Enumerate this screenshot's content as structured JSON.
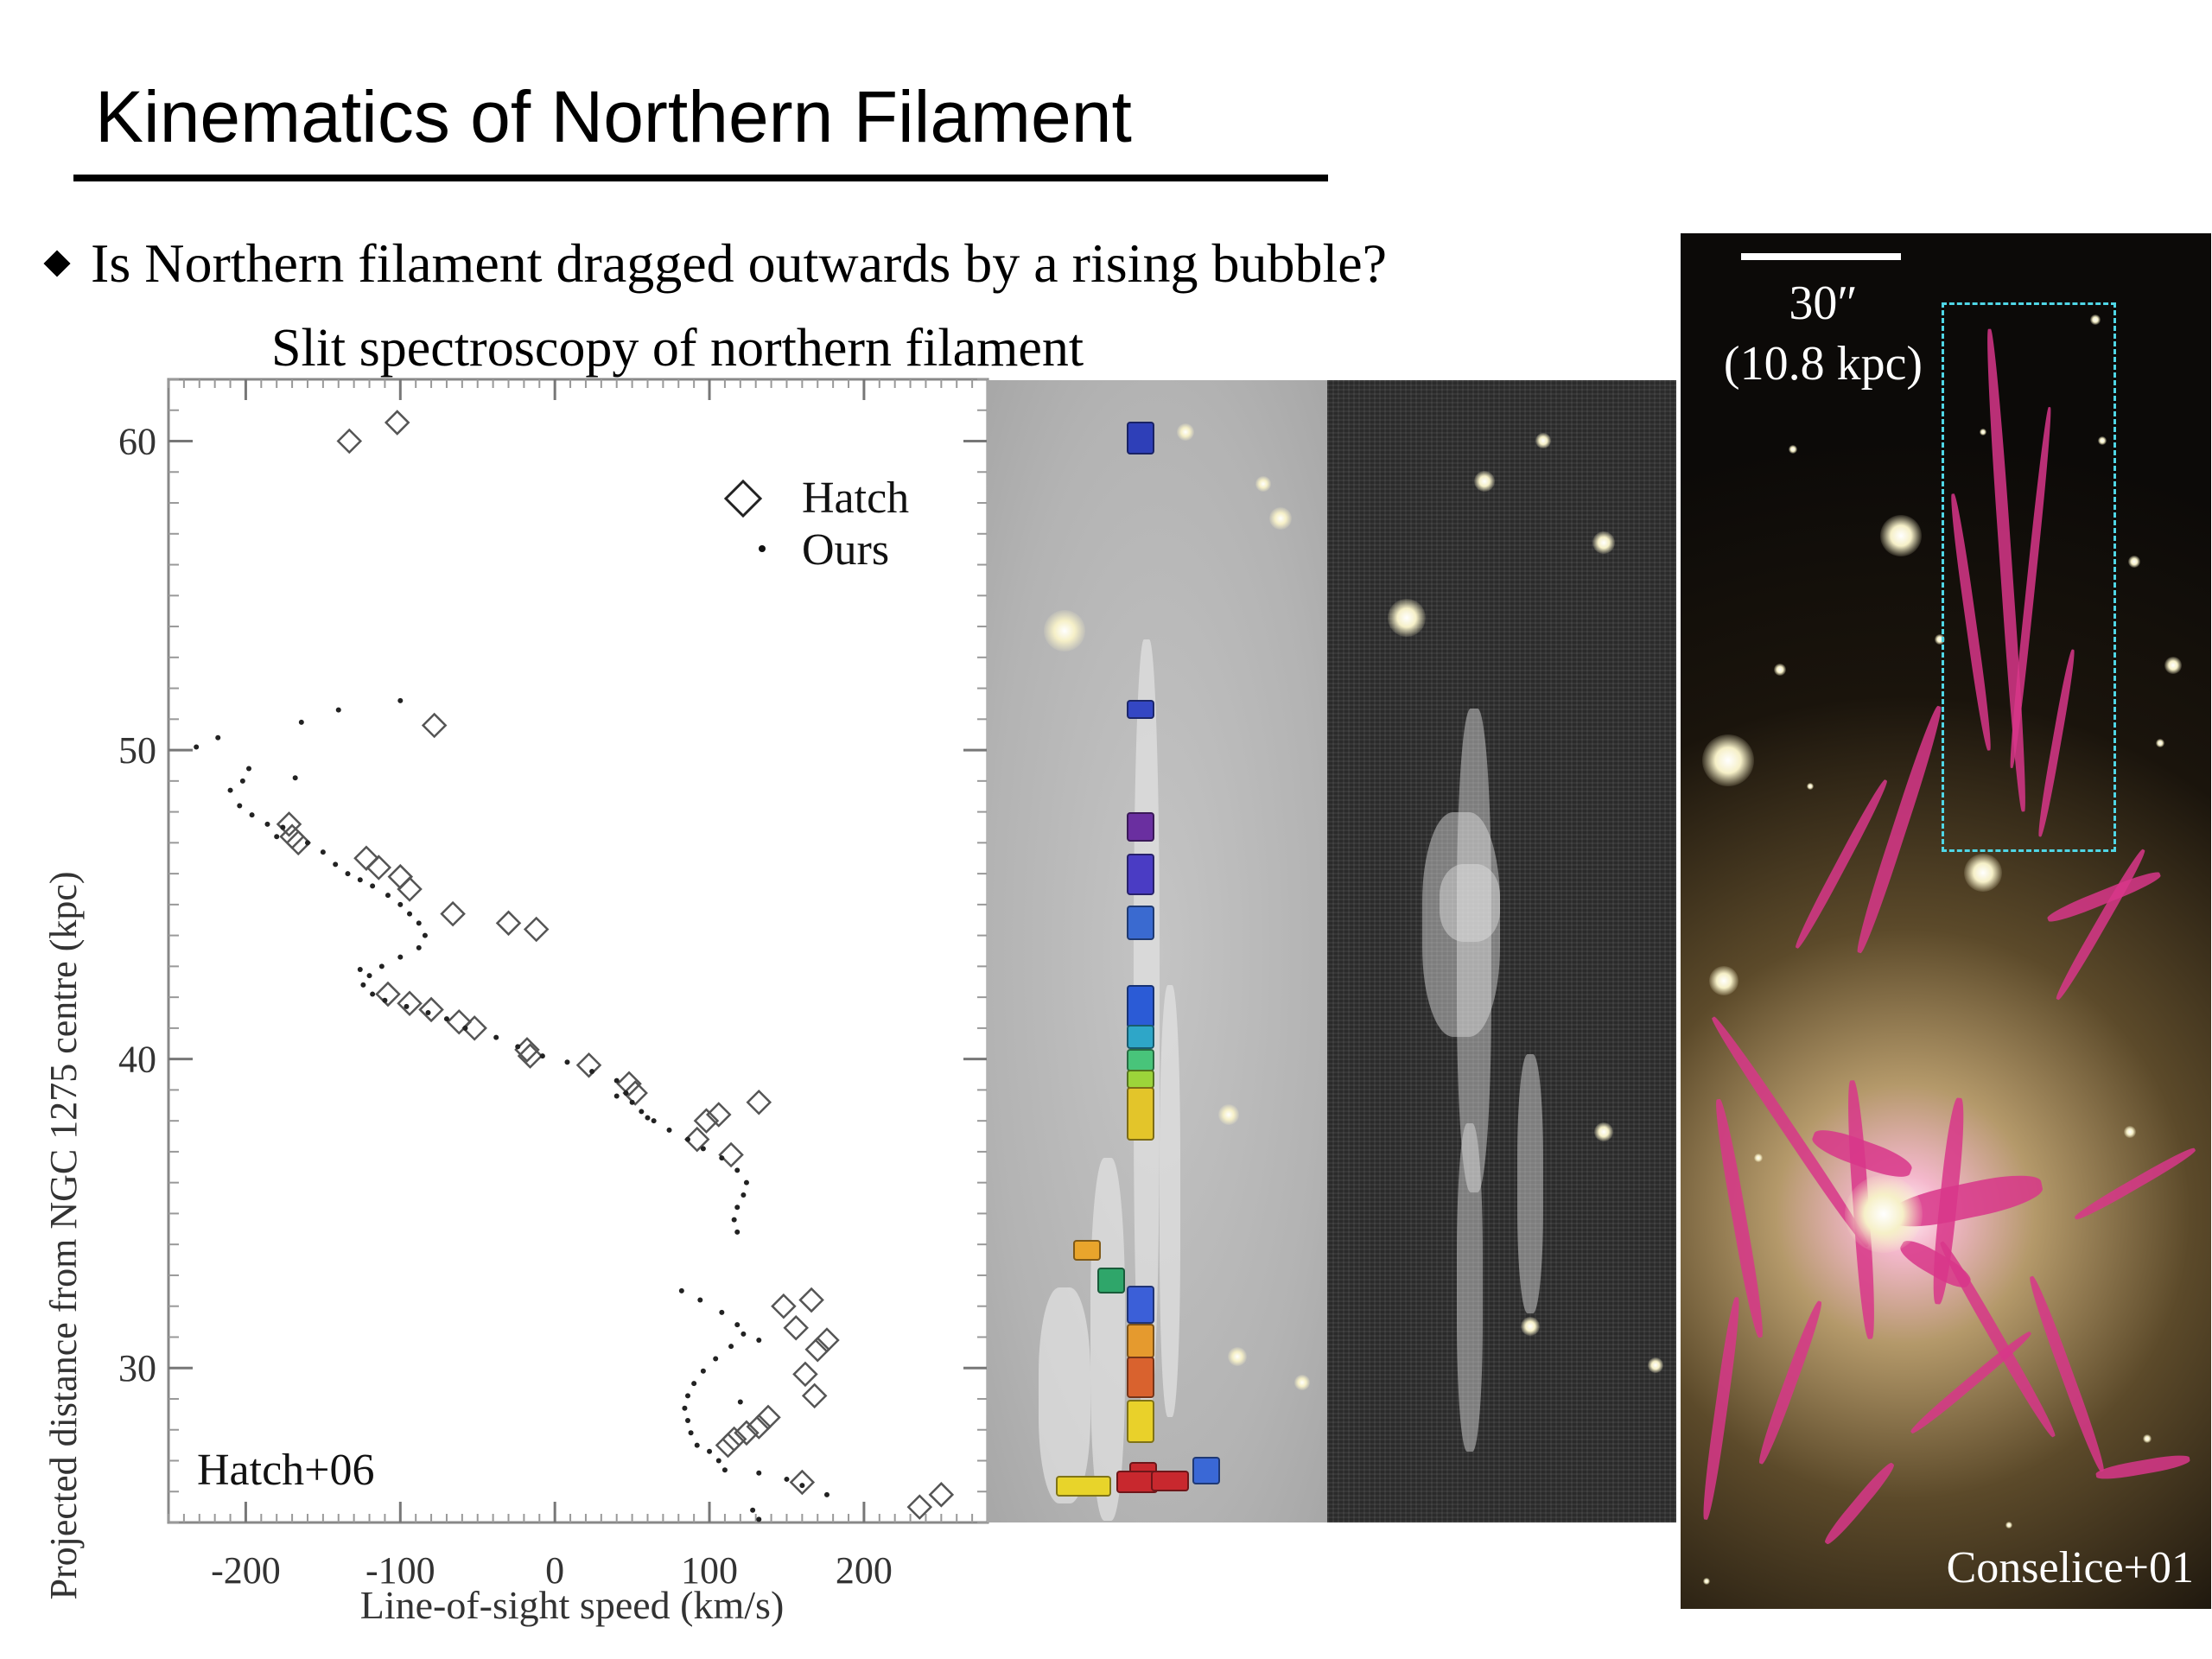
{
  "slide": {
    "title": "Kinematics of Northern Filament",
    "bullet": "Is Northern filament dragged outwards by a rising bubble?",
    "subheading": "Slit spectroscopy of northern filament"
  },
  "chart_data": {
    "type": "scatter",
    "xlabel": "Line-of-sight speed (km/s)",
    "ylabel": "Projected distance from NGC 1275 centre (kpc)",
    "xlim": [
      -250,
      280
    ],
    "ylim": [
      25,
      62
    ],
    "xticks": [
      -200,
      -100,
      0,
      100,
      200
    ],
    "yticks": [
      30,
      40,
      50,
      60
    ],
    "legend_position": "top-right",
    "annotation": "Hatch+06",
    "series": [
      {
        "name": "Hatch",
        "marker": "diamond",
        "points": [
          [
            -133,
            60.0
          ],
          [
            -102,
            60.6
          ],
          [
            -78,
            50.8
          ],
          [
            -172,
            47.6
          ],
          [
            -170,
            47.2
          ],
          [
            -166,
            47.0
          ],
          [
            -122,
            46.5
          ],
          [
            -114,
            46.2
          ],
          [
            -100,
            45.9
          ],
          [
            -94,
            45.5
          ],
          [
            -66,
            44.7
          ],
          [
            -30,
            44.4
          ],
          [
            -12,
            44.2
          ],
          [
            -108,
            42.1
          ],
          [
            -94,
            41.8
          ],
          [
            -80,
            41.6
          ],
          [
            -62,
            41.2
          ],
          [
            -52,
            41.0
          ],
          [
            -18,
            40.3
          ],
          [
            -16,
            40.1
          ],
          [
            22,
            39.8
          ],
          [
            48,
            39.2
          ],
          [
            52,
            38.9
          ],
          [
            132,
            38.6
          ],
          [
            98,
            38.0
          ],
          [
            106,
            38.2
          ],
          [
            92,
            37.4
          ],
          [
            114,
            36.9
          ],
          [
            148,
            32.0
          ],
          [
            166,
            32.2
          ],
          [
            156,
            31.3
          ],
          [
            176,
            30.9
          ],
          [
            170,
            30.6
          ],
          [
            162,
            29.8
          ],
          [
            168,
            29.1
          ],
          [
            138,
            28.4
          ],
          [
            132,
            28.1
          ],
          [
            124,
            27.9
          ],
          [
            116,
            27.7
          ],
          [
            112,
            27.5
          ],
          [
            160,
            26.3
          ],
          [
            236,
            25.5
          ],
          [
            250,
            25.9
          ]
        ]
      },
      {
        "name": "Ours",
        "marker": "dot",
        "points": [
          [
            -232,
            50.1
          ],
          [
            -218,
            50.4
          ],
          [
            -164,
            50.9
          ],
          [
            -168,
            49.1
          ],
          [
            -198,
            49.4
          ],
          [
            -202,
            49.0
          ],
          [
            -210,
            48.7
          ],
          [
            -204,
            48.2
          ],
          [
            -196,
            47.9
          ],
          [
            -186,
            47.6
          ],
          [
            -180,
            47.2
          ],
          [
            -160,
            47.0
          ],
          [
            -150,
            46.7
          ],
          [
            -142,
            46.3
          ],
          [
            -134,
            46.0
          ],
          [
            -126,
            45.8
          ],
          [
            -118,
            45.6
          ],
          [
            -108,
            45.3
          ],
          [
            -100,
            45.0
          ],
          [
            -94,
            44.7
          ],
          [
            -88,
            44.4
          ],
          [
            -84,
            44.0
          ],
          [
            -88,
            43.6
          ],
          [
            -100,
            43.3
          ],
          [
            -112,
            43.0
          ],
          [
            -120,
            42.7
          ],
          [
            -124,
            42.4
          ],
          [
            -118,
            42.1
          ],
          [
            -110,
            41.9
          ],
          [
            -96,
            41.7
          ],
          [
            -82,
            41.5
          ],
          [
            -70,
            41.3
          ],
          [
            -58,
            41.0
          ],
          [
            -38,
            40.7
          ],
          [
            -24,
            40.4
          ],
          [
            -8,
            40.1
          ],
          [
            8,
            39.9
          ],
          [
            24,
            39.6
          ],
          [
            40,
            39.3
          ],
          [
            46,
            38.9
          ],
          [
            50,
            38.6
          ],
          [
            56,
            38.3
          ],
          [
            64,
            38.0
          ],
          [
            74,
            37.7
          ],
          [
            86,
            37.4
          ],
          [
            96,
            37.1
          ],
          [
            108,
            36.8
          ],
          [
            118,
            36.4
          ],
          [
            124,
            36.0
          ],
          [
            122,
            35.6
          ],
          [
            118,
            35.2
          ],
          [
            116,
            34.8
          ],
          [
            118,
            34.4
          ],
          [
            82,
            32.5
          ],
          [
            94,
            32.2
          ],
          [
            108,
            31.8
          ],
          [
            118,
            31.4
          ],
          [
            122,
            31.1
          ],
          [
            114,
            30.7
          ],
          [
            104,
            30.3
          ],
          [
            96,
            29.9
          ],
          [
            90,
            29.5
          ],
          [
            86,
            29.1
          ],
          [
            84,
            28.7
          ],
          [
            86,
            28.3
          ],
          [
            88,
            27.9
          ],
          [
            92,
            27.5
          ],
          [
            100,
            27.3
          ],
          [
            106,
            27.0
          ],
          [
            132,
            26.6
          ],
          [
            150,
            26.4
          ],
          [
            160,
            26.2
          ],
          [
            176,
            25.9
          ],
          [
            128,
            25.4
          ],
          [
            132,
            25.1
          ],
          [
            -140,
            51.3
          ],
          [
            -100,
            51.6
          ],
          [
            -176,
            47.5
          ],
          [
            -126,
            42.9
          ],
          [
            40,
            38.8
          ],
          [
            60,
            38.1
          ],
          [
            132,
            30.9
          ],
          [
            120,
            28.9
          ],
          [
            110,
            26.7
          ]
        ]
      }
    ]
  },
  "spectra": {
    "slit_colors": [
      "#2e3fb8",
      "#3447c4",
      "#6a2fa0",
      "#4a3cc4",
      "#3a6ad0",
      "#2b5bd6",
      "#2ea6c8",
      "#48c47a",
      "#9cd43a",
      "#e3c52a",
      "#e9a52c",
      "#2fa66a",
      "#3b5fd8",
      "#e59a2e",
      "#d9622e",
      "#e9d12a",
      "#c8282e",
      "#3a68d6"
    ]
  },
  "galaxy_image": {
    "scale_label_top": "30″",
    "scale_label_bottom": "(10.8 kpc)",
    "credit": "Conselice+01",
    "box_color": "#4fd6e6",
    "filament_color": "#d8368a"
  }
}
